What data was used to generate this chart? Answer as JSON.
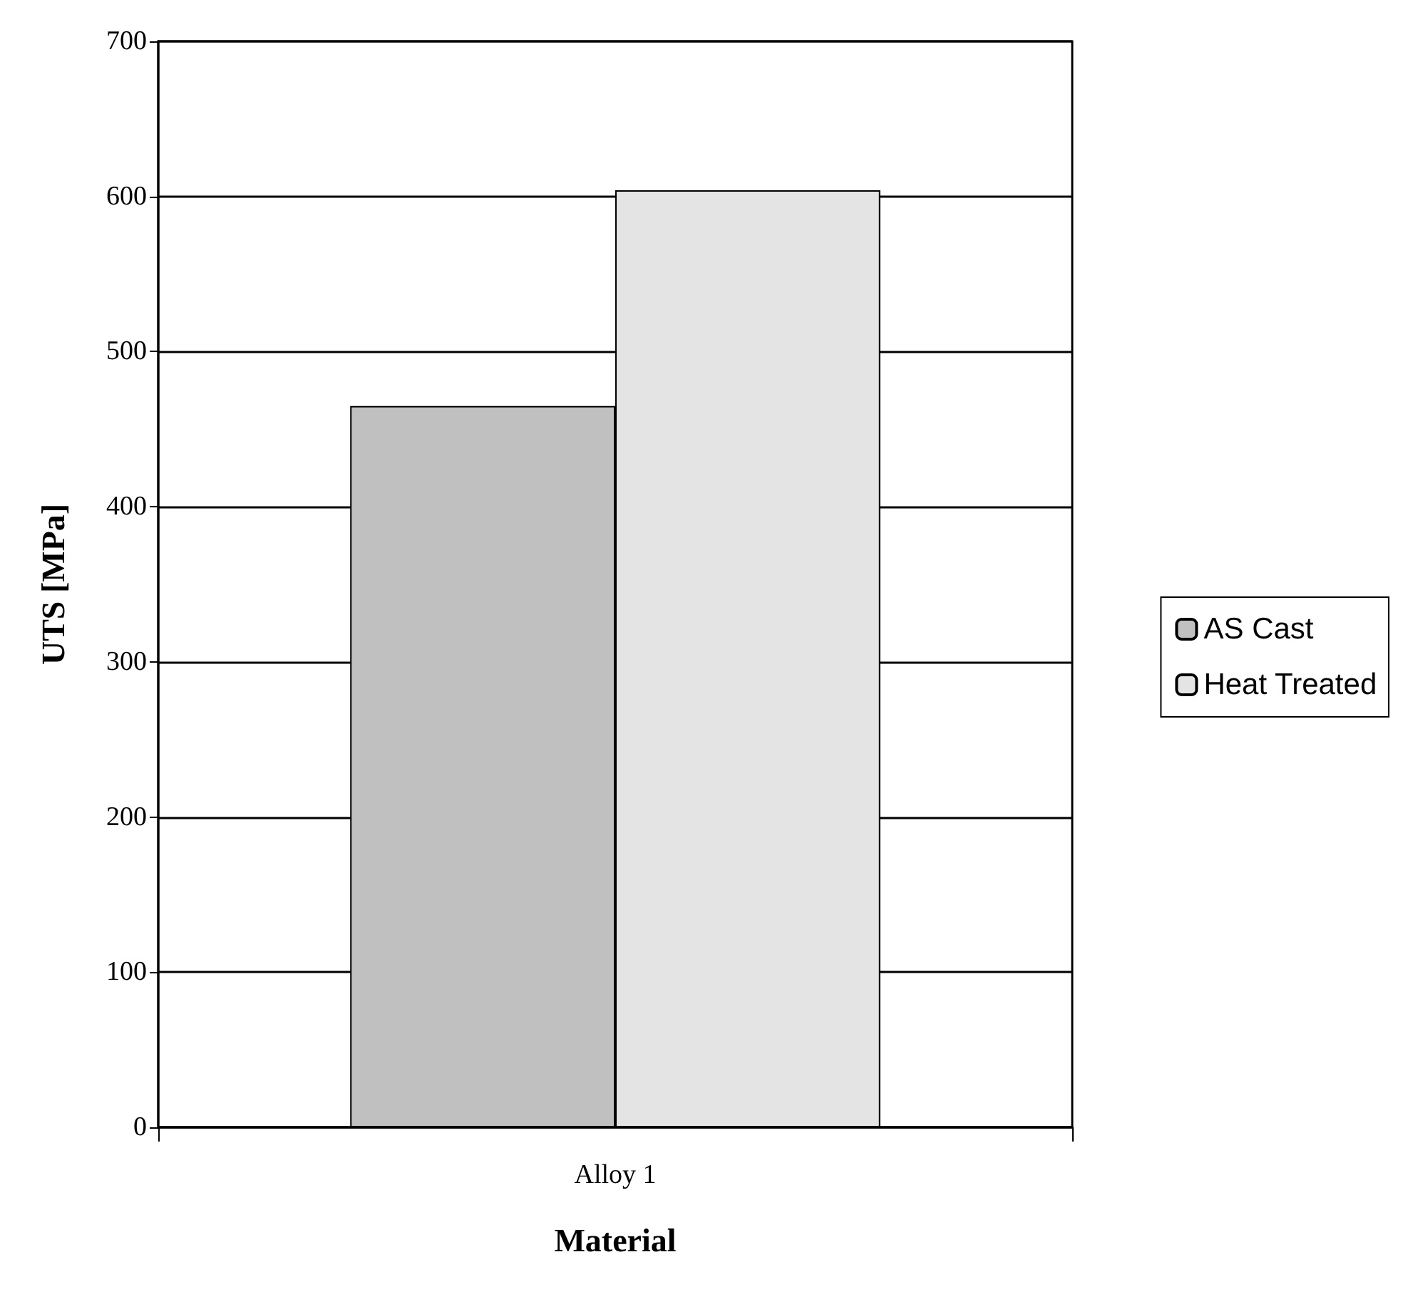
{
  "chart_data": {
    "type": "bar",
    "categories": [
      "Alloy 1"
    ],
    "xlabel": "Material",
    "ylabel": "UTS [MPa]",
    "series": [
      {
        "name": "AS Cast",
        "color": "#c0c0c0",
        "values": [
          465
        ]
      },
      {
        "name": "Heat Treated",
        "color": "#e4e4e4",
        "values": [
          604
        ]
      }
    ],
    "ylim": [
      0,
      700
    ],
    "yticks": [
      0,
      100,
      200,
      300,
      400,
      500,
      600,
      700
    ],
    "grid": "y",
    "legend": "right"
  }
}
